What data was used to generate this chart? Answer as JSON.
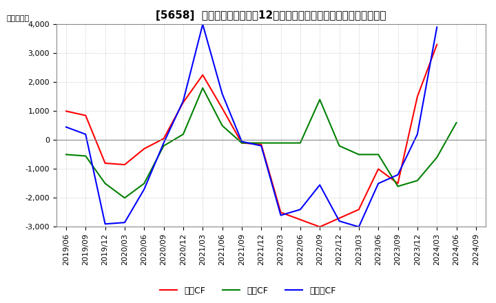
{
  "title": "[5658]  キャッシュフローの12か月移動合計の対前年同期増減額の推移",
  "ylabel": "（百万円）",
  "background_color": "#ffffff",
  "grid_color": "#aaaaaa",
  "ylim": [
    -3000,
    4000
  ],
  "yticks": [
    -3000,
    -2000,
    -1000,
    0,
    1000,
    2000,
    3000,
    4000
  ],
  "x_labels": [
    "2019/06",
    "2019/09",
    "2019/12",
    "2020/03",
    "2020/06",
    "2020/09",
    "2020/12",
    "2021/03",
    "2021/06",
    "2021/09",
    "2021/12",
    "2022/03",
    "2022/06",
    "2022/09",
    "2022/12",
    "2023/03",
    "2023/06",
    "2023/09",
    "2023/12",
    "2024/03",
    "2024/06",
    "2024/09"
  ],
  "operating_cf": [
    1000,
    850,
    -800,
    -850,
    -300,
    50,
    1300,
    2250,
    1100,
    -100,
    -150,
    -2500,
    -2750,
    -3000,
    -2700,
    -2400,
    -1000,
    -1500,
    1500,
    3300,
    null,
    null
  ],
  "investing_cf": [
    -500,
    -550,
    -1500,
    -2000,
    -1500,
    -200,
    200,
    1800,
    500,
    -100,
    -100,
    -100,
    -100,
    1400,
    -200,
    -500,
    -500,
    -1600,
    -1400,
    -600,
    600,
    null
  ],
  "free_cf": [
    450,
    200,
    -2900,
    -2850,
    -1700,
    -100,
    1350,
    4000,
    1600,
    -50,
    -200,
    -2600,
    -2400,
    -1550,
    -2800,
    -3000,
    -1500,
    -1200,
    200,
    3900,
    null,
    null
  ],
  "series_colors": {
    "operating": "#ff0000",
    "investing": "#008000",
    "free": "#0000ff"
  },
  "series_labels": {
    "operating": "営業CF",
    "investing": "投資CF",
    "free": "フリーCF"
  },
  "title_fontsize": 11,
  "axis_fontsize": 8,
  "tick_fontsize": 8,
  "legend_fontsize": 9
}
